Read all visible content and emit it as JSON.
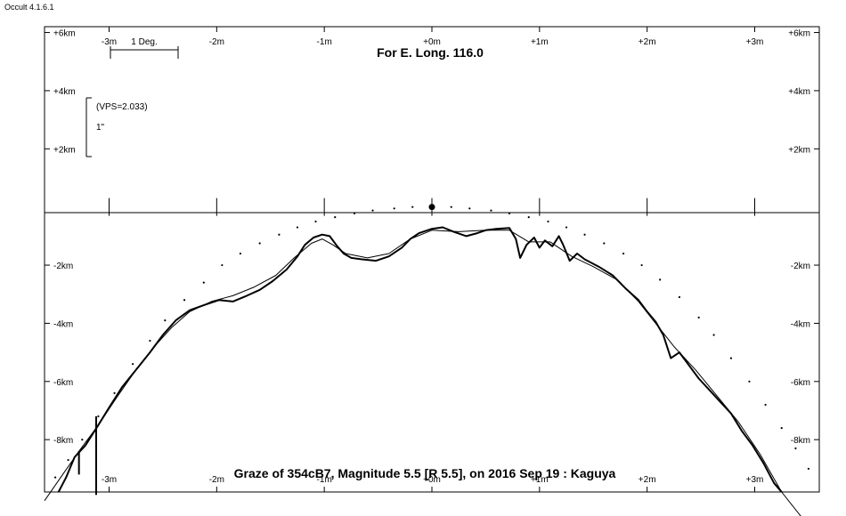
{
  "app": {
    "title": "Occult 4.1.6.1"
  },
  "chart_data": {
    "type": "line",
    "title": "For E. Long. 116.0",
    "footer": "Graze of  354cB7,  Magnitude 5.5 [R 5.5],  on 2016 Sep 19  :  Kaguya",
    "scale_bar_label": "1 Deg.",
    "vps_label": "(VPS=2.033)",
    "arcsec_label": "1\"",
    "x_unit": "min",
    "x_range": [
      -3.6,
      3.6
    ],
    "y_unit": "km",
    "y_range": [
      -9.8,
      6.2
    ],
    "x_tick_values": [
      -3,
      -2,
      -1,
      0,
      1,
      2,
      3
    ],
    "x_tick_labels": [
      "-3m",
      "-2m",
      "-1m",
      "+0m",
      "+1m",
      "+2m",
      "+3m"
    ],
    "y_tick_values_upper": [
      6,
      4,
      2
    ],
    "y_tick_labels_upper": [
      "+6km",
      "+4km",
      "+2km"
    ],
    "y_tick_values_lower": [
      -2,
      -4,
      -6,
      -8
    ],
    "y_tick_labels_lower": [
      "-2km",
      "-4km",
      "-6km",
      "-8km"
    ],
    "series": [
      {
        "name": "",
        "style": "thick",
        "points": [
          [
            -3.47,
            -9.8
          ],
          [
            -3.4,
            -9.3
          ],
          [
            -3.32,
            -8.6
          ],
          [
            -3.22,
            -8.2
          ],
          [
            -3.1,
            -7.5
          ],
          [
            -3.0,
            -6.9
          ],
          [
            -2.88,
            -6.2
          ],
          [
            -2.75,
            -5.6
          ],
          [
            -2.62,
            -5.0
          ],
          [
            -2.5,
            -4.4
          ],
          [
            -2.38,
            -3.9
          ],
          [
            -2.25,
            -3.55
          ],
          [
            -2.1,
            -3.35
          ],
          [
            -1.98,
            -3.2
          ],
          [
            -1.85,
            -3.25
          ],
          [
            -1.72,
            -3.05
          ],
          [
            -1.6,
            -2.85
          ],
          [
            -1.48,
            -2.55
          ],
          [
            -1.35,
            -2.15
          ],
          [
            -1.25,
            -1.7
          ],
          [
            -1.18,
            -1.3
          ],
          [
            -1.1,
            -1.05
          ],
          [
            -1.02,
            -0.95
          ],
          [
            -0.95,
            -1.0
          ],
          [
            -0.88,
            -1.35
          ],
          [
            -0.82,
            -1.6
          ],
          [
            -0.75,
            -1.75
          ],
          [
            -0.65,
            -1.8
          ],
          [
            -0.52,
            -1.85
          ],
          [
            -0.4,
            -1.7
          ],
          [
            -0.28,
            -1.4
          ],
          [
            -0.2,
            -1.1
          ],
          [
            -0.12,
            -0.9
          ],
          [
            0.0,
            -0.75
          ],
          [
            0.1,
            -0.7
          ],
          [
            0.2,
            -0.85
          ],
          [
            0.32,
            -1.0
          ],
          [
            0.42,
            -0.9
          ],
          [
            0.5,
            -0.8
          ],
          [
            0.6,
            -0.75
          ],
          [
            0.72,
            -0.72
          ],
          [
            0.78,
            -1.1
          ],
          [
            0.82,
            -1.75
          ],
          [
            0.88,
            -1.3
          ],
          [
            0.95,
            -1.05
          ],
          [
            1.0,
            -1.4
          ],
          [
            1.05,
            -1.15
          ],
          [
            1.12,
            -1.35
          ],
          [
            1.18,
            -1.0
          ],
          [
            1.22,
            -1.3
          ],
          [
            1.28,
            -1.85
          ],
          [
            1.35,
            -1.6
          ],
          [
            1.42,
            -1.8
          ],
          [
            1.55,
            -2.05
          ],
          [
            1.68,
            -2.35
          ],
          [
            1.8,
            -2.8
          ],
          [
            1.92,
            -3.2
          ],
          [
            2.0,
            -3.6
          ],
          [
            2.08,
            -3.95
          ],
          [
            2.15,
            -4.4
          ],
          [
            2.22,
            -5.2
          ],
          [
            2.3,
            -5.0
          ],
          [
            2.38,
            -5.4
          ],
          [
            2.48,
            -5.9
          ],
          [
            2.58,
            -6.3
          ],
          [
            2.68,
            -6.7
          ],
          [
            2.78,
            -7.1
          ],
          [
            2.88,
            -7.7
          ],
          [
            2.98,
            -8.2
          ],
          [
            3.08,
            -8.8
          ],
          [
            3.18,
            -9.5
          ],
          [
            3.25,
            -9.8
          ]
        ]
      },
      {
        "name": "",
        "style": "thin",
        "points": [
          [
            -3.6,
            -10.1
          ],
          [
            -3.45,
            -9.3
          ],
          [
            -3.28,
            -8.4
          ],
          [
            -3.1,
            -7.5
          ],
          [
            -2.92,
            -6.5
          ],
          [
            -2.75,
            -5.6
          ],
          [
            -2.58,
            -4.8
          ],
          [
            -2.42,
            -4.15
          ],
          [
            -2.25,
            -3.6
          ],
          [
            -2.05,
            -3.25
          ],
          [
            -1.85,
            -3.05
          ],
          [
            -1.65,
            -2.75
          ],
          [
            -1.45,
            -2.35
          ],
          [
            -1.28,
            -1.75
          ],
          [
            -1.12,
            -1.25
          ],
          [
            -1.02,
            -1.1
          ],
          [
            -0.92,
            -1.3
          ],
          [
            -0.8,
            -1.6
          ],
          [
            -0.6,
            -1.75
          ],
          [
            -0.4,
            -1.6
          ],
          [
            -0.2,
            -1.1
          ],
          [
            0.0,
            -0.8
          ],
          [
            0.25,
            -0.85
          ],
          [
            0.5,
            -0.8
          ],
          [
            0.72,
            -0.8
          ],
          [
            0.9,
            -1.2
          ],
          [
            1.1,
            -1.2
          ],
          [
            1.3,
            -1.7
          ],
          [
            1.5,
            -2.05
          ],
          [
            1.72,
            -2.5
          ],
          [
            1.92,
            -3.25
          ],
          [
            2.1,
            -4.1
          ],
          [
            2.25,
            -4.8
          ],
          [
            2.45,
            -5.6
          ],
          [
            2.65,
            -6.5
          ],
          [
            2.85,
            -7.4
          ],
          [
            3.05,
            -8.5
          ],
          [
            3.25,
            -9.8
          ],
          [
            3.55,
            -11.2
          ]
        ]
      },
      {
        "name": "",
        "style": "dotted",
        "points": [
          [
            -3.5,
            -9.3
          ],
          [
            -3.38,
            -8.7
          ],
          [
            -3.25,
            -8.0
          ],
          [
            -3.1,
            -7.2
          ],
          [
            -2.95,
            -6.4
          ],
          [
            -2.78,
            -5.4
          ],
          [
            -2.62,
            -4.6
          ],
          [
            -2.48,
            -3.9
          ],
          [
            -2.3,
            -3.2
          ],
          [
            -2.12,
            -2.6
          ],
          [
            -1.95,
            -2.0
          ],
          [
            -1.78,
            -1.6
          ],
          [
            -1.6,
            -1.25
          ],
          [
            -1.42,
            -0.95
          ],
          [
            -1.25,
            -0.7
          ],
          [
            -1.08,
            -0.5
          ],
          [
            -0.9,
            -0.35
          ],
          [
            -0.72,
            -0.22
          ],
          [
            -0.55,
            -0.12
          ],
          [
            -0.35,
            -0.05
          ],
          [
            -0.18,
            0.0
          ],
          [
            0.0,
            0.0
          ],
          [
            0.18,
            0.0
          ],
          [
            0.35,
            -0.05
          ],
          [
            0.55,
            -0.12
          ],
          [
            0.72,
            -0.22
          ],
          [
            0.9,
            -0.35
          ],
          [
            1.08,
            -0.5
          ],
          [
            1.25,
            -0.7
          ],
          [
            1.42,
            -0.95
          ],
          [
            1.6,
            -1.25
          ],
          [
            1.78,
            -1.6
          ],
          [
            1.95,
            -2.0
          ],
          [
            2.12,
            -2.5
          ],
          [
            2.3,
            -3.1
          ],
          [
            2.48,
            -3.8
          ],
          [
            2.62,
            -4.4
          ],
          [
            2.78,
            -5.2
          ],
          [
            2.95,
            -6.0
          ],
          [
            3.1,
            -6.8
          ],
          [
            3.25,
            -7.6
          ],
          [
            3.38,
            -8.3
          ],
          [
            3.5,
            -9.0
          ]
        ]
      }
    ],
    "spikes": [
      [
        -3.28,
        -8.4,
        -9.2
      ],
      [
        -3.12,
        -7.2,
        -9.9
      ]
    ],
    "center_point": [
      0,
      0
    ]
  }
}
